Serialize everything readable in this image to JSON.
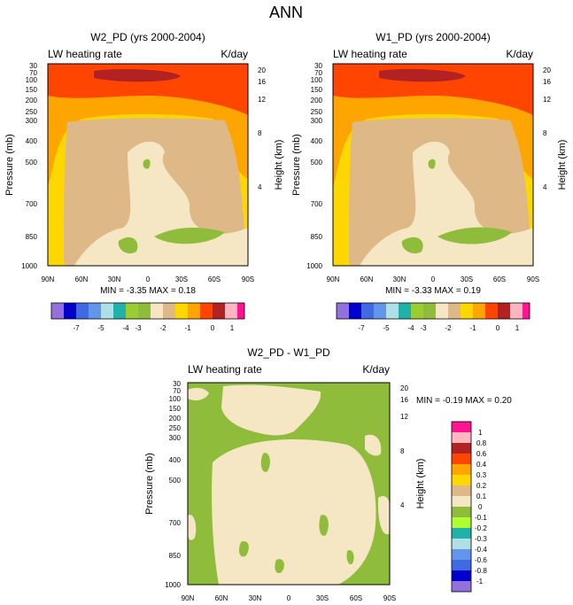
{
  "figure_title": "ANN",
  "colors": {
    "palette13": [
      "#9370db",
      "#0000cd",
      "#4169e1",
      "#6495ed",
      "#b0e0e6",
      "#20b2aa",
      "#9acd32",
      "#8fbc3a",
      "#f5e6c4",
      "#deb887",
      "#ffd700",
      "#ffa500",
      "#ff4500",
      "#b22222",
      "#ffb6c1",
      "#ff1493"
    ],
    "diff": [
      "#9370db",
      "#0000cd",
      "#4169e1",
      "#6495ed",
      "#b0e0e6",
      "#20b2aa",
      "#adff2f",
      "#8fbc3a",
      "#f5e6c4",
      "#deb887",
      "#ffd700",
      "#ffa500",
      "#ff4500",
      "#b22222",
      "#ffb6c1",
      "#ff1493"
    ]
  },
  "chart_data": [
    {
      "type": "heatmap",
      "title": "W2_PD (yrs 2000-2004)",
      "left_label": "LW heating rate",
      "right_label": "K/day",
      "ylabel": "Pressure (mb)",
      "y2label": "Height (km)",
      "x_ticks": [
        "90N",
        "60N",
        "30N",
        "0",
        "30S",
        "60S",
        "90S"
      ],
      "y_ticks": [
        "30",
        "70",
        "100",
        "150",
        "200",
        "250",
        "300",
        "400",
        "500",
        "700",
        "850",
        "1000"
      ],
      "y2_ticks": [
        "20",
        "16",
        "12",
        "8",
        "4"
      ],
      "stats": "MIN = -3.35  MAX =  0.18",
      "colorbar_labels": [
        "-7",
        "-5",
        "-4",
        "-3",
        "-2",
        "-1",
        "0",
        "1"
      ]
    },
    {
      "type": "heatmap",
      "title": "W1_PD (yrs 2000-2004)",
      "left_label": "LW heating rate",
      "right_label": "K/day",
      "ylabel": "Pressure (mb)",
      "y2label": "Height (km)",
      "x_ticks": [
        "90N",
        "60N",
        "30N",
        "0",
        "30S",
        "60S",
        "90S"
      ],
      "y_ticks": [
        "30",
        "70",
        "100",
        "150",
        "200",
        "250",
        "300",
        "400",
        "500",
        "700",
        "850",
        "1000"
      ],
      "y2_ticks": [
        "20",
        "16",
        "12",
        "8",
        "4"
      ],
      "stats": "MIN = -3.33  MAX =  0.19",
      "colorbar_labels": [
        "-7",
        "-5",
        "-4",
        "-3",
        "-2",
        "-1",
        "0",
        "1"
      ]
    },
    {
      "type": "heatmap",
      "title": "W2_PD - W1_PD",
      "left_label": "LW heating rate",
      "right_label": "K/day",
      "ylabel": "Pressure (mb)",
      "y2label": "Height (km)",
      "x_ticks": [
        "90N",
        "60N",
        "30N",
        "0",
        "30S",
        "60S",
        "90S"
      ],
      "y_ticks": [
        "30",
        "70",
        "100",
        "150",
        "200",
        "250",
        "300",
        "400",
        "500",
        "700",
        "850",
        "1000"
      ],
      "y2_ticks": [
        "20",
        "16",
        "12",
        "8",
        "4"
      ],
      "stats": "MIN = -0.19  MAX =  0.20",
      "colorbar_labels": [
        "1",
        "0.8",
        "0.6",
        "0.4",
        "0.3",
        "0.2",
        "0.1",
        "0",
        "-0.1",
        "-0.2",
        "-0.3",
        "-0.4",
        "-0.6",
        "-0.8",
        "-1"
      ]
    }
  ]
}
